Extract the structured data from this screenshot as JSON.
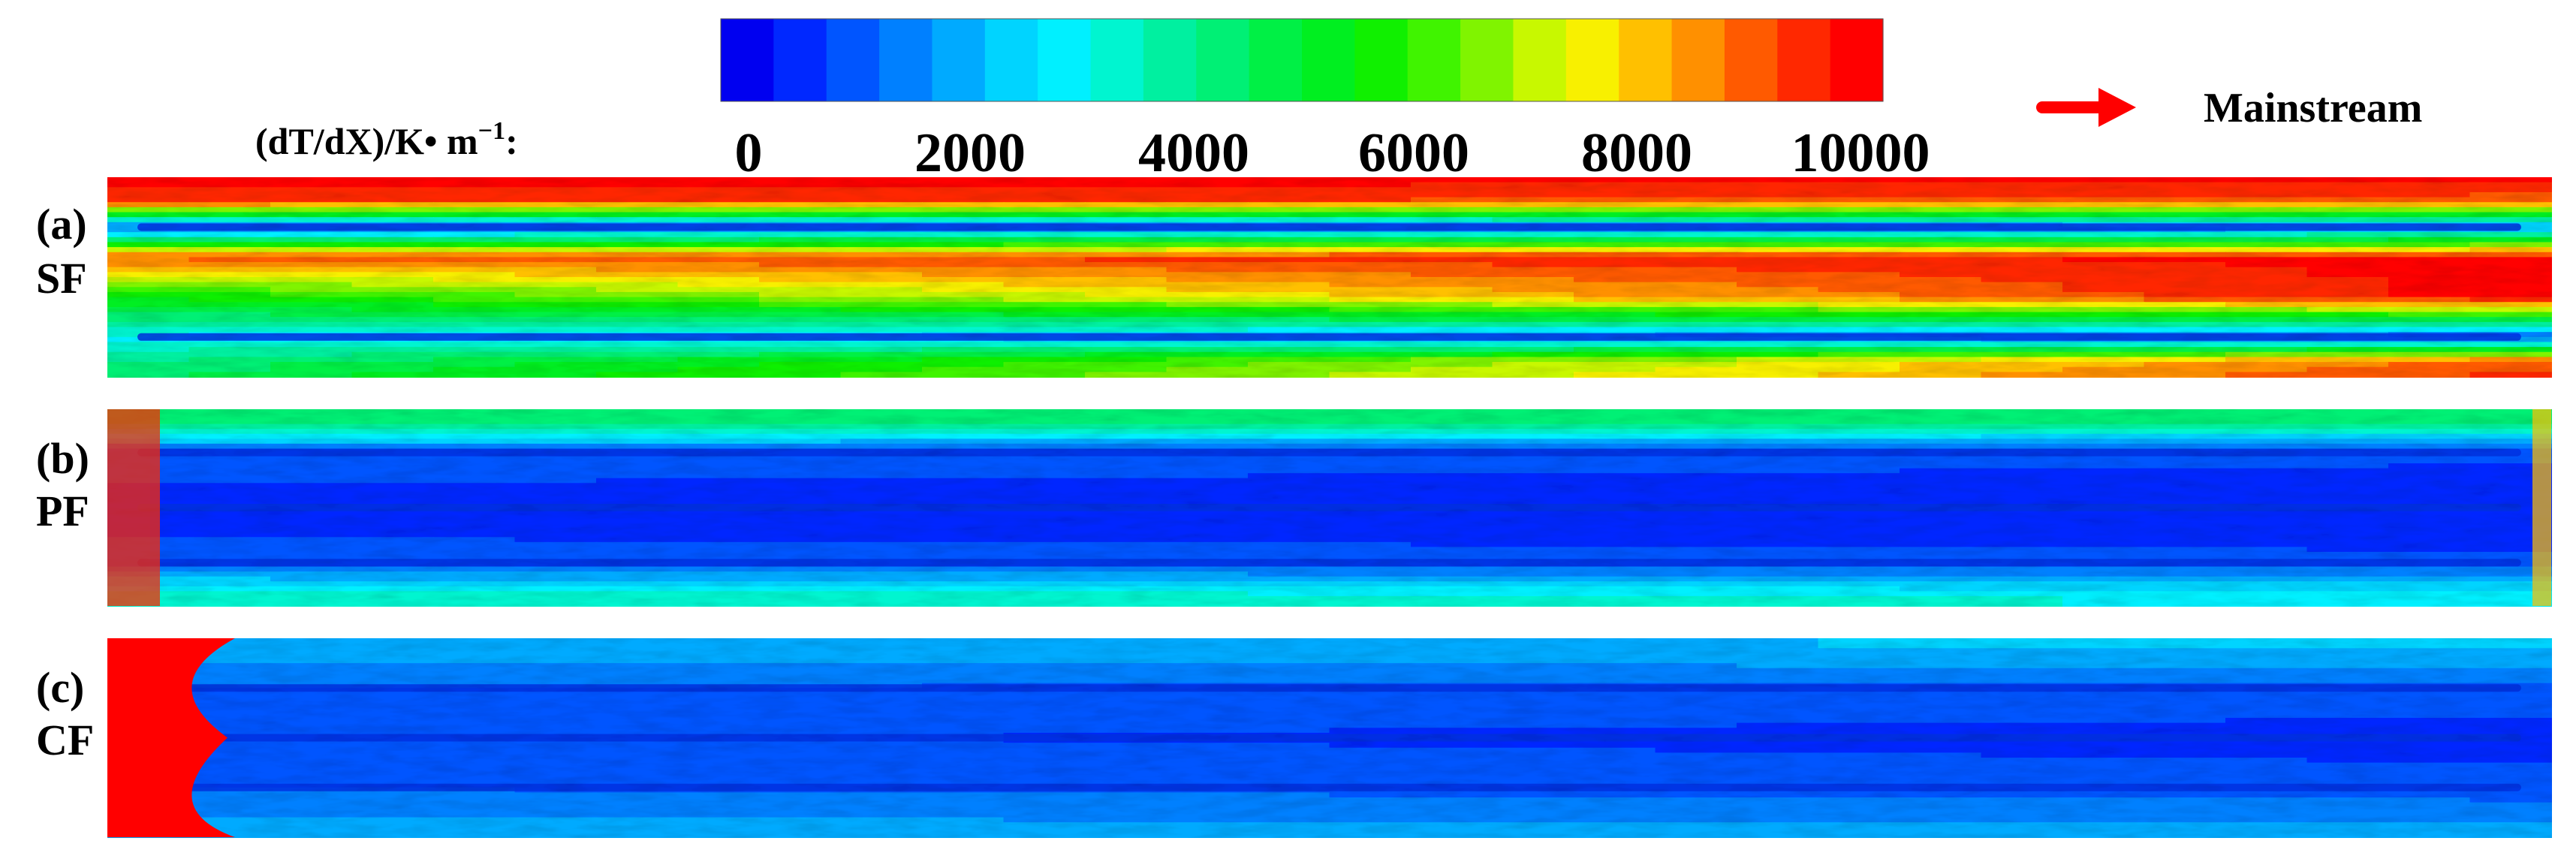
{
  "chart_data": {
    "type": "heatmap",
    "title": "",
    "colorbar": {
      "label_main": "(dT/dX)/K• m",
      "label_exponent": "−1",
      "label_suffix": ":",
      "min": 0,
      "max": 10000,
      "ticks": [
        0,
        2000,
        4000,
        6000,
        8000,
        10000
      ],
      "tick_labels": [
        "0",
        "2000",
        "4000",
        "6000",
        "8000",
        "10000"
      ],
      "levels": 21,
      "colors": [
        "#0000f0",
        "#0028ff",
        "#0055ff",
        "#0080ff",
        "#00aaff",
        "#00d4ff",
        "#00f0ff",
        "#00f5d0",
        "#00f0a0",
        "#00f075",
        "#00f045",
        "#00ef20",
        "#10f000",
        "#40f400",
        "#80f400",
        "#c8f800",
        "#f8f000",
        "#ffc000",
        "#ff9000",
        "#ff5a00",
        "#ff2800",
        "#ff0000"
      ]
    },
    "flow_indicator": {
      "label": "Mainstream",
      "direction": "right",
      "color": "#ff0000"
    },
    "panels": [
      {
        "tag": "(a)",
        "name": "SF",
        "description_rows": [
          {
            "position": 0.0,
            "value_start": 10000,
            "value_end": 10000
          },
          {
            "position": 0.12,
            "value_start": 9500,
            "value_end": 9000
          },
          {
            "position": 0.25,
            "value_start": 1000,
            "value_end": 1500
          },
          {
            "position": 0.4,
            "value_start": 9000,
            "value_end": 10000
          },
          {
            "position": 0.6,
            "value_start": 5500,
            "value_end": 10000
          },
          {
            "position": 0.8,
            "value_start": 3000,
            "value_end": 1000
          },
          {
            "position": 0.92,
            "value_start": 4000,
            "value_end": 9000
          },
          {
            "position": 1.0,
            "value_start": 4500,
            "value_end": 9500
          }
        ]
      },
      {
        "tag": "(b)",
        "name": "PF",
        "description_rows": [
          {
            "position": 0.05,
            "value_start": 4500,
            "value_end": 4500
          },
          {
            "position": 0.22,
            "value_start": 1000,
            "value_end": 800
          },
          {
            "position": 0.5,
            "value_start": 500,
            "value_end": 400
          },
          {
            "position": 0.78,
            "value_start": 900,
            "value_end": 800
          },
          {
            "position": 0.95,
            "value_start": 3500,
            "value_end": 3000
          }
        ],
        "inlet_hotspot_value": 9500
      },
      {
        "tag": "(c)",
        "name": "CF",
        "description_rows": [
          {
            "position": 0.05,
            "value_start": 2000,
            "value_end": 2200
          },
          {
            "position": 0.25,
            "value_start": 1200,
            "value_end": 1000
          },
          {
            "position": 0.5,
            "value_start": 800,
            "value_end": 500
          },
          {
            "position": 0.75,
            "value_start": 1200,
            "value_end": 900
          },
          {
            "position": 0.95,
            "value_start": 1800,
            "value_end": 1800
          }
        ],
        "inlet_hotspot_value": 10000
      }
    ]
  }
}
